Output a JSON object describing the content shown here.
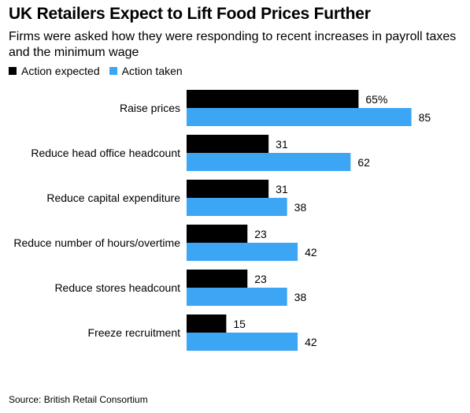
{
  "title": "UK Retailers Expect to Lift Food Prices Further",
  "subtitle": "Firms were asked how they were responding to recent increases in payroll taxes and the minimum wage",
  "source": "Source: British Retail Consortium",
  "colors": {
    "expected": "#000000",
    "taken": "#3ca6f5"
  },
  "chart_data": {
    "type": "bar",
    "orientation": "horizontal",
    "categories": [
      "Raise prices",
      "Reduce head office headcount",
      "Reduce capital expenditure",
      "Reduce number of hours/overtime",
      "Reduce stores headcount",
      "Freeze recruitment"
    ],
    "series": [
      {
        "name": "Action expected",
        "values": [
          65,
          31,
          31,
          23,
          23,
          15
        ],
        "labels": [
          "65%",
          "31",
          "31",
          "23",
          "23",
          "15"
        ]
      },
      {
        "name": "Action taken",
        "values": [
          85,
          62,
          38,
          42,
          38,
          42
        ],
        "labels": [
          "85",
          "62",
          "38",
          "42",
          "38",
          "42"
        ]
      }
    ],
    "xlim": [
      0,
      100
    ],
    "grid": false,
    "legend": "top-left"
  }
}
